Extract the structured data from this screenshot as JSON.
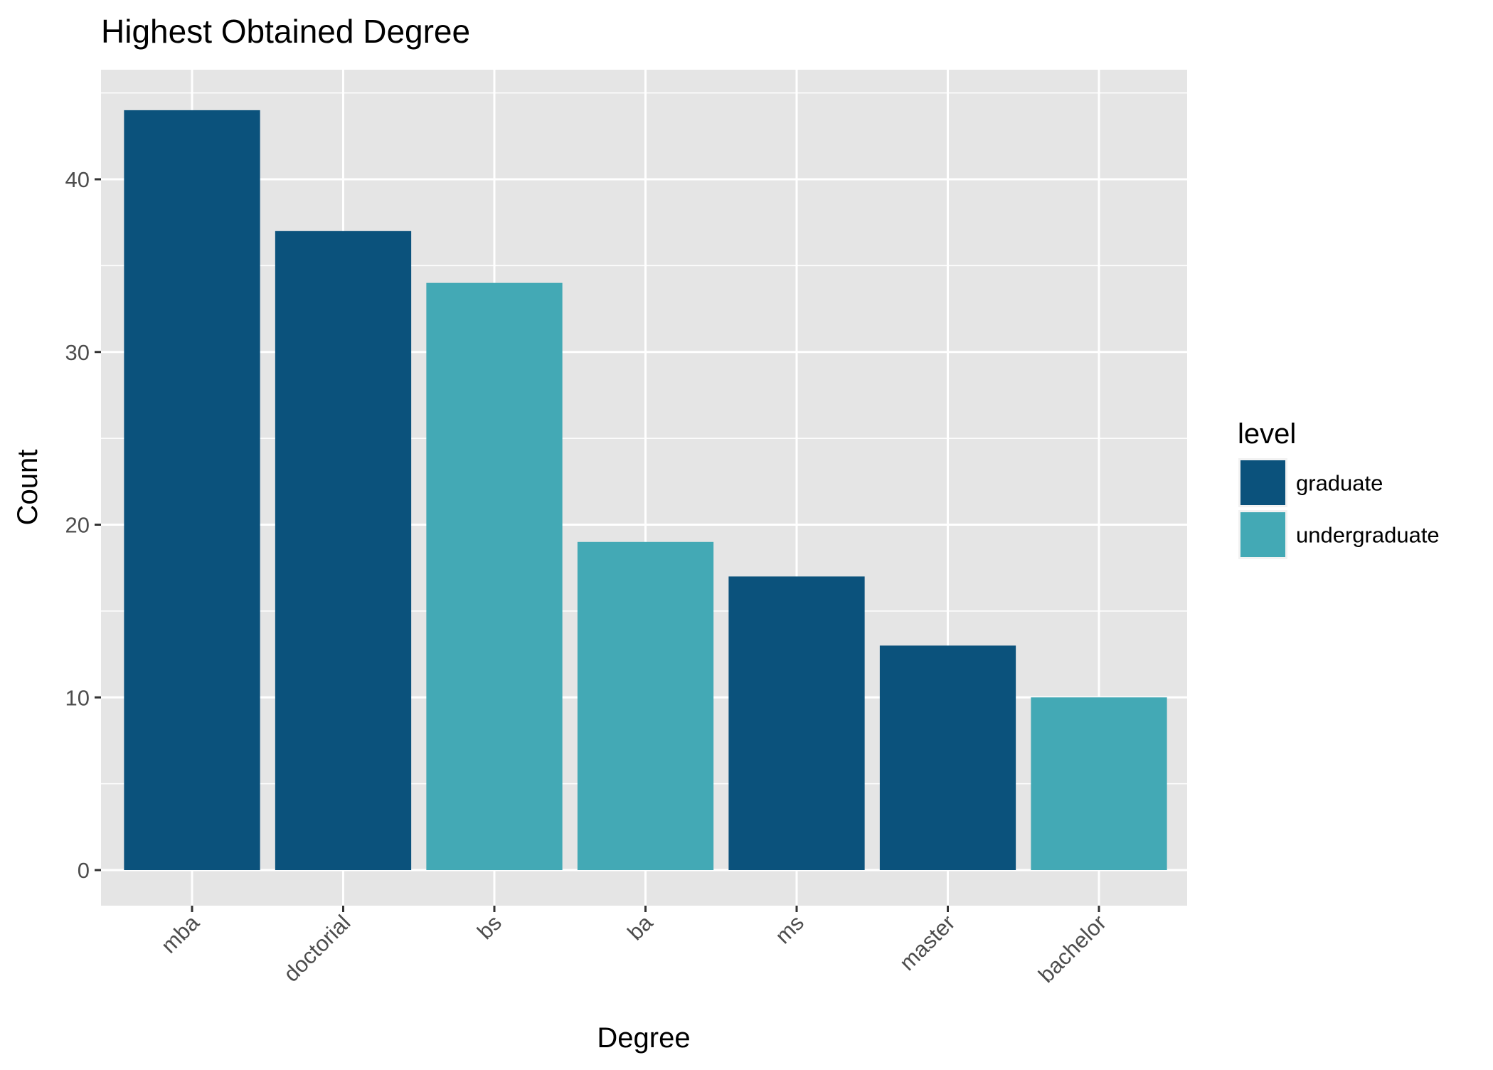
{
  "chart_data": {
    "type": "bar",
    "title": "Highest Obtained Degree",
    "xlabel": "Degree",
    "ylabel": "Count",
    "categories": [
      "mba",
      "doctorial",
      "bs",
      "ba",
      "ms",
      "master",
      "bachelor"
    ],
    "values": [
      44,
      37,
      34,
      19,
      17,
      13,
      10
    ],
    "groups": [
      "graduate",
      "graduate",
      "undergraduate",
      "undergraduate",
      "graduate",
      "graduate",
      "undergraduate"
    ],
    "ylim": [
      0,
      46
    ],
    "yticks": [
      0,
      10,
      20,
      30,
      40
    ],
    "grid": true,
    "legend": {
      "title": "level",
      "position": "right",
      "entries": [
        {
          "name": "graduate",
          "color": "#0b527c"
        },
        {
          "name": "undergraduate",
          "color": "#43a9b5"
        }
      ]
    },
    "colors": {
      "panel": "#e5e5e5",
      "grid": "#ffffff"
    }
  }
}
